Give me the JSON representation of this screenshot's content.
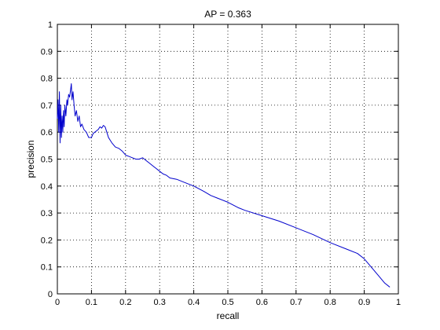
{
  "chart_data": {
    "type": "line",
    "title": "AP = 0.363",
    "xlabel": "recall",
    "ylabel": "precision",
    "xlim": [
      0,
      1
    ],
    "ylim": [
      0,
      1
    ],
    "xticks": [
      0,
      0.1,
      0.2,
      0.3,
      0.4,
      0.5,
      0.6,
      0.7,
      0.8,
      0.9,
      1
    ],
    "yticks": [
      0,
      0.1,
      0.2,
      0.3,
      0.4,
      0.5,
      0.6,
      0.7,
      0.8,
      0.9,
      1
    ],
    "xtick_labels": [
      "0",
      "0.1",
      "0.2",
      "0.3",
      "0.4",
      "0.5",
      "0.6",
      "0.7",
      "0.8",
      "0.9",
      "1"
    ],
    "ytick_labels": [
      "0",
      "0.1",
      "0.2",
      "0.3",
      "0.4",
      "0.5",
      "0.6",
      "0.7",
      "0.8",
      "0.9",
      "1"
    ],
    "grid": true,
    "colors": {
      "series": "#0000cc",
      "grid": "#000000",
      "frame": "#000000"
    },
    "series": [
      {
        "x": [
          0.0,
          0.002,
          0.004,
          0.006,
          0.008,
          0.01,
          0.012,
          0.014,
          0.016,
          0.018,
          0.02,
          0.022,
          0.025,
          0.028,
          0.03,
          0.033,
          0.036,
          0.039,
          0.041,
          0.043,
          0.046,
          0.049,
          0.052,
          0.056,
          0.06,
          0.064,
          0.068,
          0.072,
          0.078,
          0.085,
          0.092,
          0.1,
          0.105,
          0.11,
          0.115,
          0.12,
          0.125,
          0.13,
          0.135,
          0.14,
          0.145,
          0.15,
          0.155,
          0.16,
          0.17,
          0.18,
          0.19,
          0.2,
          0.21,
          0.22,
          0.23,
          0.24,
          0.25,
          0.26,
          0.27,
          0.28,
          0.29,
          0.3,
          0.31,
          0.32,
          0.33,
          0.35,
          0.37,
          0.4,
          0.43,
          0.45,
          0.47,
          0.5,
          0.53,
          0.55,
          0.6,
          0.65,
          0.7,
          0.75,
          0.8,
          0.85,
          0.88,
          0.9,
          0.92,
          0.94,
          0.96,
          0.975
        ],
        "y": [
          0.65,
          0.72,
          0.6,
          0.75,
          0.56,
          0.7,
          0.58,
          0.66,
          0.6,
          0.68,
          0.62,
          0.7,
          0.66,
          0.72,
          0.7,
          0.74,
          0.73,
          0.76,
          0.78,
          0.72,
          0.75,
          0.7,
          0.66,
          0.68,
          0.64,
          0.66,
          0.62,
          0.63,
          0.61,
          0.6,
          0.58,
          0.58,
          0.595,
          0.6,
          0.605,
          0.61,
          0.62,
          0.615,
          0.625,
          0.62,
          0.6,
          0.58,
          0.57,
          0.56,
          0.545,
          0.54,
          0.53,
          0.515,
          0.51,
          0.505,
          0.5,
          0.5,
          0.505,
          0.495,
          0.485,
          0.475,
          0.465,
          0.455,
          0.445,
          0.44,
          0.43,
          0.425,
          0.415,
          0.4,
          0.38,
          0.365,
          0.355,
          0.34,
          0.32,
          0.31,
          0.29,
          0.27,
          0.245,
          0.22,
          0.19,
          0.165,
          0.15,
          0.13,
          0.1,
          0.07,
          0.04,
          0.025
        ]
      }
    ]
  }
}
